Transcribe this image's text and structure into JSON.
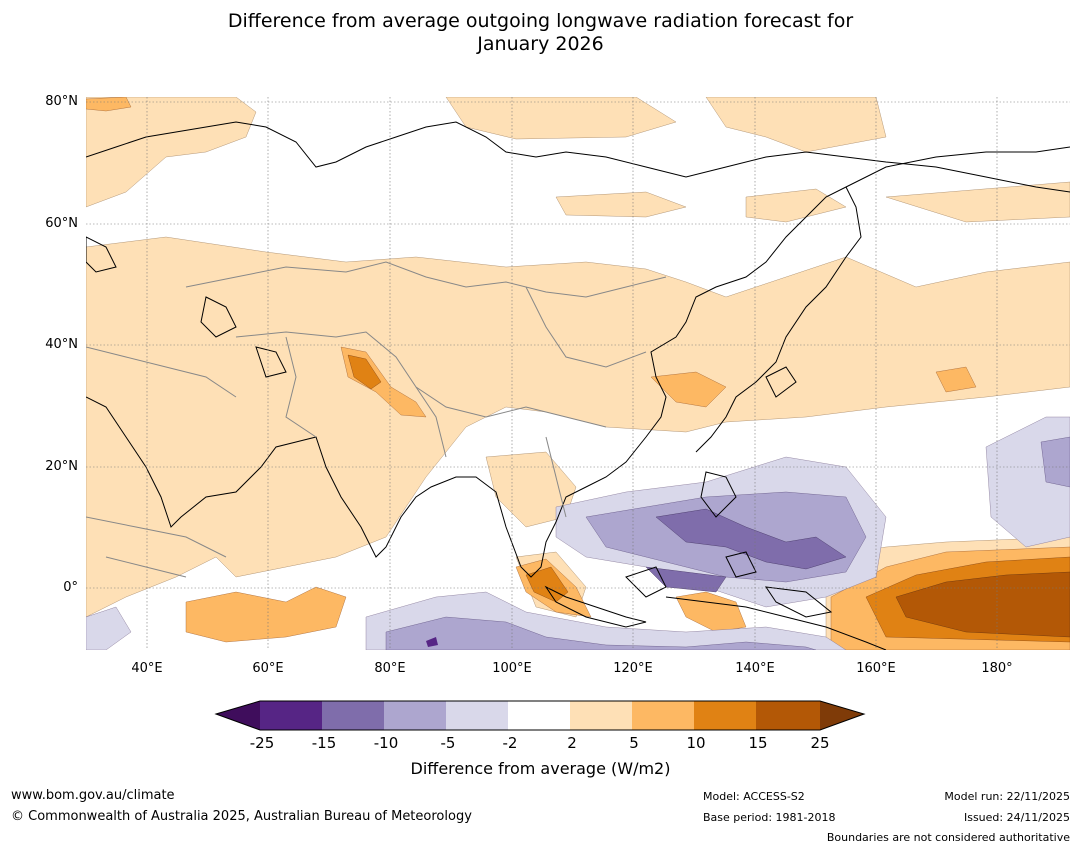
{
  "title_line1": "Difference from average outgoing longwave radiation forecast for",
  "title_line2": "January 2026",
  "map": {
    "lat_labels": [
      "80°N",
      "60°N",
      "40°N",
      "20°N",
      "0°"
    ],
    "lon_labels": [
      "40°E",
      "60°E",
      "80°E",
      "100°E",
      "120°E",
      "140°E",
      "160°E",
      "180°"
    ],
    "colors": {
      "coast": "#000000",
      "border": "#888888",
      "grid": "#777777"
    }
  },
  "colorbar": {
    "ticks": [
      "-25",
      "-15",
      "-10",
      "-5",
      "-2",
      "2",
      "5",
      "10",
      "15",
      "25"
    ],
    "colors": [
      "#3f0d5c",
      "#562585",
      "#7f6dab",
      "#ada6cf",
      "#d9d8ea",
      "#ffffff",
      "#fee0b6",
      "#fdb863",
      "#e08214",
      "#b35806",
      "#7f3b08"
    ],
    "label": "Difference from average (W/m2)"
  },
  "footer": {
    "url": "www.bom.gov.au/climate",
    "copyright": "© Commonwealth of Australia 2025, Australian Bureau of Meteorology",
    "model": "Model: ACCESS-S2",
    "base_period": "Base period: 1981-2018",
    "model_run": "Model run: 22/11/2025",
    "issued": "Issued: 24/11/2025",
    "disclaimer": "Boundaries are not considered authoritative"
  }
}
